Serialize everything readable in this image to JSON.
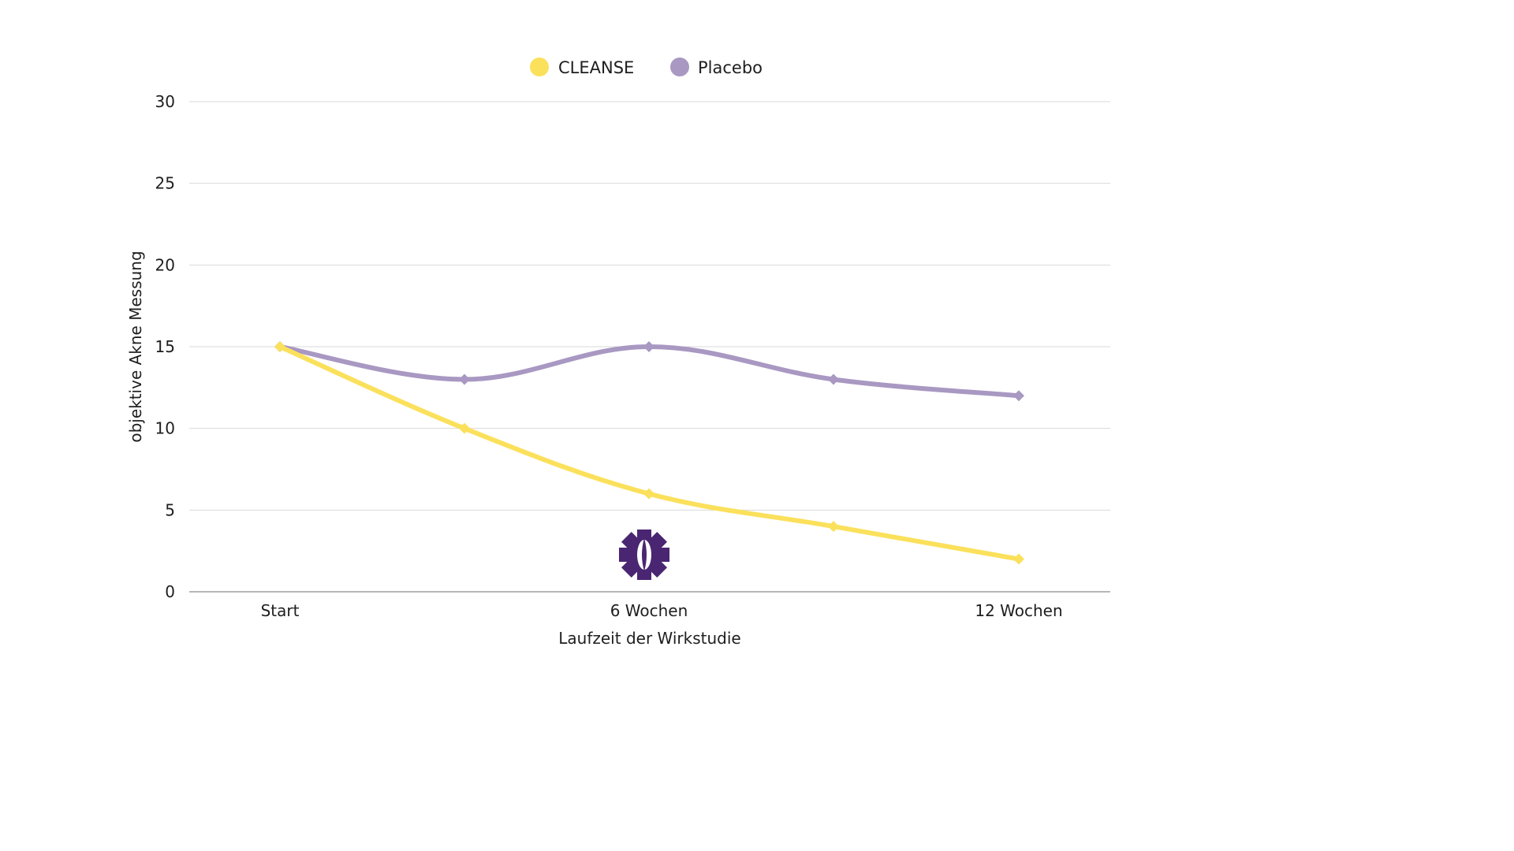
{
  "chart_data": {
    "type": "line",
    "title": "",
    "xlabel": "Laufzeit der Wirkstudie",
    "ylabel": "objektive Akne Messung",
    "categories": [
      "Start",
      "",
      "6 Wochen",
      "",
      "12 Wochen"
    ],
    "ylim": [
      0,
      30
    ],
    "yticks": [
      0,
      5,
      10,
      15,
      20,
      25,
      30
    ],
    "grid": true,
    "legend_position": "top-center",
    "smooth": true,
    "marker": "diamond",
    "series": [
      {
        "name": "CLEANSE",
        "color": "#fbe05b",
        "values": [
          15,
          10,
          6,
          4,
          2
        ]
      },
      {
        "name": "Placebo",
        "color": "#a898c2",
        "values": [
          15,
          13,
          15,
          13,
          12
        ]
      }
    ]
  },
  "watermark": {
    "icon": "purple-gear-logo-icon",
    "color": "#4a2672"
  }
}
